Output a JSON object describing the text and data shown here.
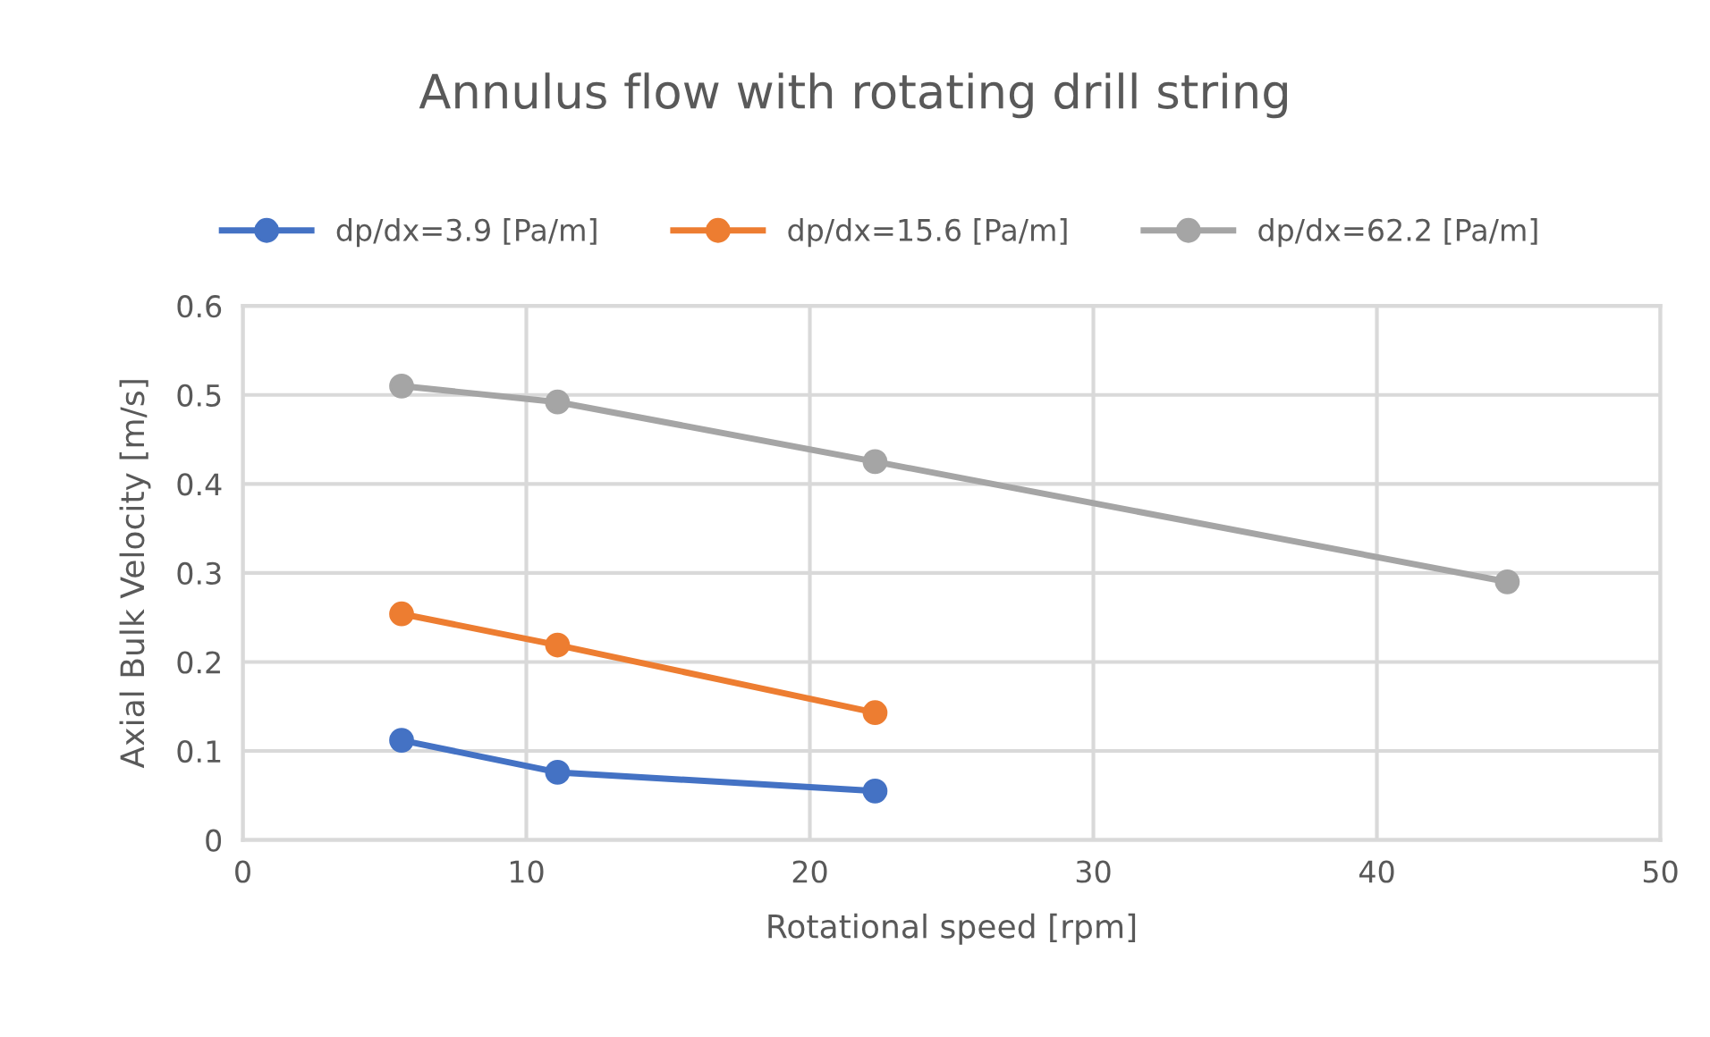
{
  "chart_data": {
    "type": "line",
    "title": "Annulus flow with rotating drill string",
    "xlabel": "Rotational speed [rpm]",
    "ylabel": "Axial Bulk Velocity [m/s]",
    "series": [
      {
        "name": "dp/dx=3.9 [Pa/m]",
        "color": "#4472c4",
        "x": [
          5.6,
          11.1,
          22.3
        ],
        "values": [
          0.112,
          0.076,
          0.055
        ]
      },
      {
        "name": "dp/dx=15.6 [Pa/m]",
        "color": "#ed7d31",
        "x": [
          5.6,
          11.1,
          22.3
        ],
        "values": [
          0.254,
          0.219,
          0.143
        ]
      },
      {
        "name": "dp/dx=62.2 [Pa/m]",
        "color": "#a5a5a5",
        "x": [
          5.6,
          11.1,
          22.3,
          44.6
        ],
        "values": [
          0.51,
          0.492,
          0.425,
          0.29
        ]
      }
    ],
    "xlim": [
      0,
      50
    ],
    "xticks": [
      0,
      10,
      20,
      30,
      40,
      50
    ],
    "ylim": [
      0,
      0.6
    ],
    "yticks": [
      0,
      0.1,
      0.2,
      0.3,
      0.4,
      0.5,
      0.6
    ],
    "grid": true,
    "legend": "top",
    "marker": "circle",
    "line_style": "solid"
  }
}
